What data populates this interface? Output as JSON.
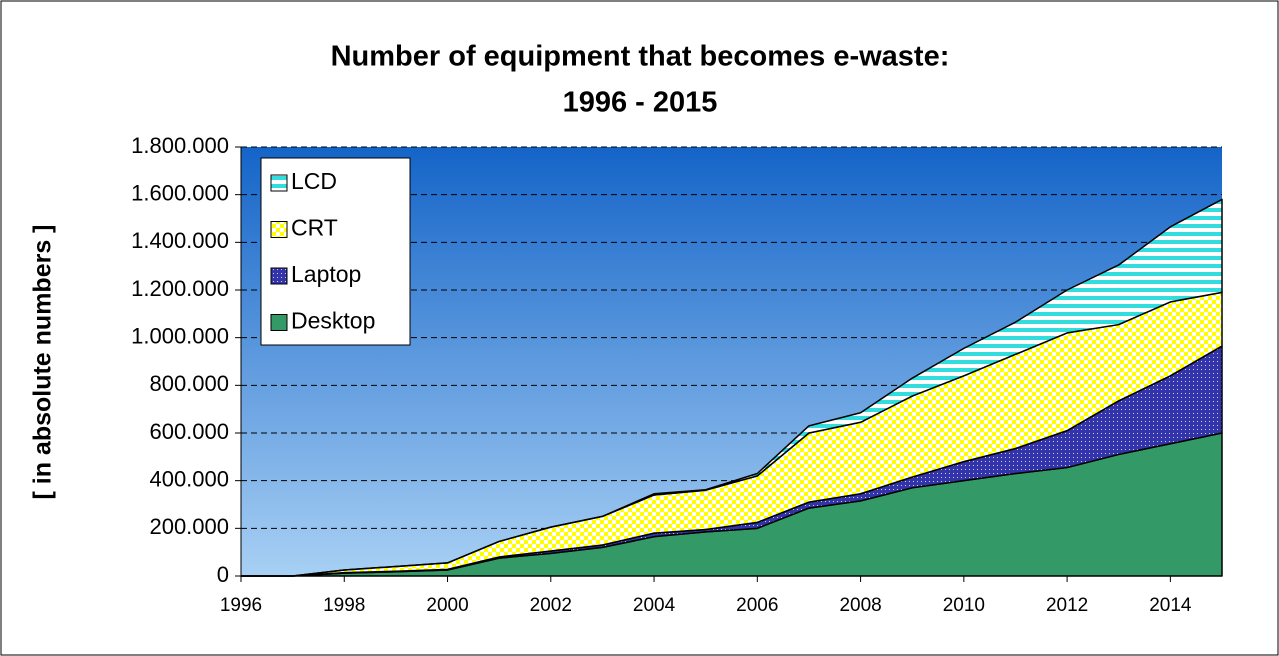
{
  "chart_data": {
    "type": "stacked_area",
    "title": [
      "Number of equipment that becomes e-waste:",
      "1996 - 2015"
    ],
    "y_label": "[ in absolute numbers ]",
    "x": [
      1996,
      1997,
      1998,
      1999,
      2000,
      2001,
      2002,
      2003,
      2004,
      2005,
      2006,
      2007,
      2008,
      2009,
      2010,
      2011,
      2012,
      2013,
      2014,
      2015
    ],
    "series": [
      {
        "name": "Desktop",
        "color": "#339966",
        "pattern": "solid",
        "values": [
          0,
          0,
          12000,
          18000,
          25000,
          75000,
          95000,
          120000,
          165000,
          185000,
          200000,
          285000,
          315000,
          370000,
          400000,
          430000,
          455000,
          510000,
          555000,
          600000
        ]
      },
      {
        "name": "Laptop",
        "color": "#3333aa",
        "pattern": "dots",
        "values": [
          0,
          0,
          2000,
          2000,
          3000,
          5000,
          10000,
          10000,
          15000,
          10000,
          25000,
          25000,
          30000,
          45000,
          80000,
          105000,
          155000,
          225000,
          285000,
          365000
        ]
      },
      {
        "name": "CRT",
        "color": "#ffff00",
        "pattern": "checker",
        "values": [
          0,
          0,
          11000,
          20000,
          27000,
          65000,
          100000,
          120000,
          160000,
          165000,
          195000,
          290000,
          300000,
          340000,
          360000,
          395000,
          410000,
          320000,
          310000,
          225000
        ]
      },
      {
        "name": "LCD",
        "color": "#33dddd",
        "pattern": "stripes",
        "values": [
          0,
          0,
          0,
          0,
          0,
          0,
          0,
          0,
          5000,
          2000,
          10000,
          30000,
          40000,
          75000,
          115000,
          135000,
          180000,
          250000,
          315000,
          390000
        ]
      }
    ],
    "xlim": [
      1996,
      2015
    ],
    "xticks": [
      1996,
      1998,
      2000,
      2002,
      2004,
      2006,
      2008,
      2010,
      2012,
      2014
    ],
    "ylim": [
      0,
      1800000
    ],
    "yticks": [
      0,
      {
        "value": 200000,
        "label": "200.000"
      },
      {
        "value": 400000,
        "label": "400.000"
      },
      {
        "value": 600000,
        "label": "600.000"
      },
      {
        "value": 800000,
        "label": "800.000"
      },
      {
        "value": 1000000,
        "label": "1.000.000"
      },
      {
        "value": 1200000,
        "label": "1.200.000"
      },
      {
        "value": 1400000,
        "label": "1.400.000"
      },
      {
        "value": 1600000,
        "label": "1.600.000"
      },
      {
        "value": 1800000,
        "label": "1.800.000"
      }
    ],
    "grid": true,
    "legend": "upper left"
  }
}
